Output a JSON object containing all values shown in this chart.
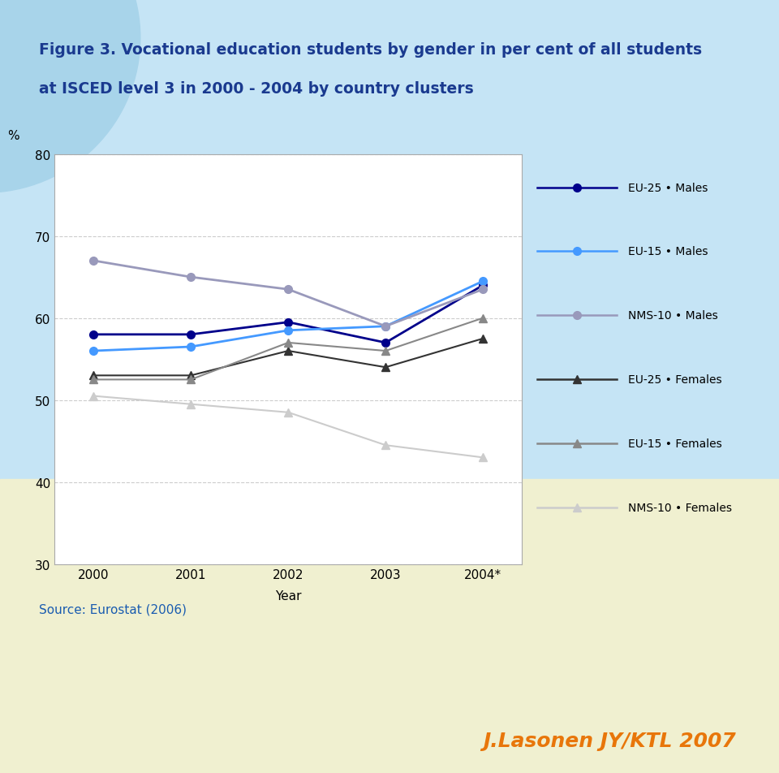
{
  "title_line1": "Figure 3. Vocational education students by gender in per cent of all students",
  "title_line2": "at ISCED level 3 in 2000 - 2004 by country clusters",
  "title_color": "#1a3a8f",
  "source_text": "Source: Eurostat (2006)",
  "source_color": "#1a5cb0",
  "footer_text": "J.Lasonen JY/KTL 2007",
  "footer_color": "#e8760a",
  "xlabel": "Year",
  "ylabel": "%",
  "x_labels": [
    "2000",
    "2001",
    "2002",
    "2003",
    "2004*"
  ],
  "x_values": [
    0,
    1,
    2,
    3,
    4
  ],
  "ylim": [
    30,
    80
  ],
  "yticks": [
    30,
    40,
    50,
    60,
    70,
    80
  ],
  "series": {
    "EU-25 Males": {
      "values": [
        58,
        58,
        59.5,
        57,
        64
      ],
      "color": "#00008b",
      "marker": "o",
      "linewidth": 2,
      "markersize": 7
    },
    "EU-15 Males": {
      "values": [
        56,
        56.5,
        58.5,
        59,
        64.5
      ],
      "color": "#4499ff",
      "marker": "o",
      "linewidth": 2,
      "markersize": 7
    },
    "NMS-10 Males": {
      "values": [
        67,
        65,
        63.5,
        59,
        63.5
      ],
      "color": "#9999bb",
      "marker": "o",
      "linewidth": 2,
      "markersize": 7
    },
    "EU-25 Females": {
      "values": [
        53,
        53,
        56,
        54,
        57.5
      ],
      "color": "#333333",
      "marker": "^",
      "linewidth": 1.5,
      "markersize": 7
    },
    "EU-15 Females": {
      "values": [
        52.5,
        52.5,
        57,
        56,
        60
      ],
      "color": "#888888",
      "marker": "^",
      "linewidth": 1.5,
      "markersize": 7
    },
    "NMS-10 Females": {
      "values": [
        50.5,
        49.5,
        48.5,
        44.5,
        43
      ],
      "color": "#cccccc",
      "marker": "^",
      "linewidth": 1.5,
      "markersize": 7
    }
  },
  "bg_top_color": "#c5e4f5",
  "bg_bottom_color": "#f0f0d0",
  "plot_bg": "#ffffff",
  "grid_color": "#cccccc",
  "circle_color": "#a8d4ea"
}
